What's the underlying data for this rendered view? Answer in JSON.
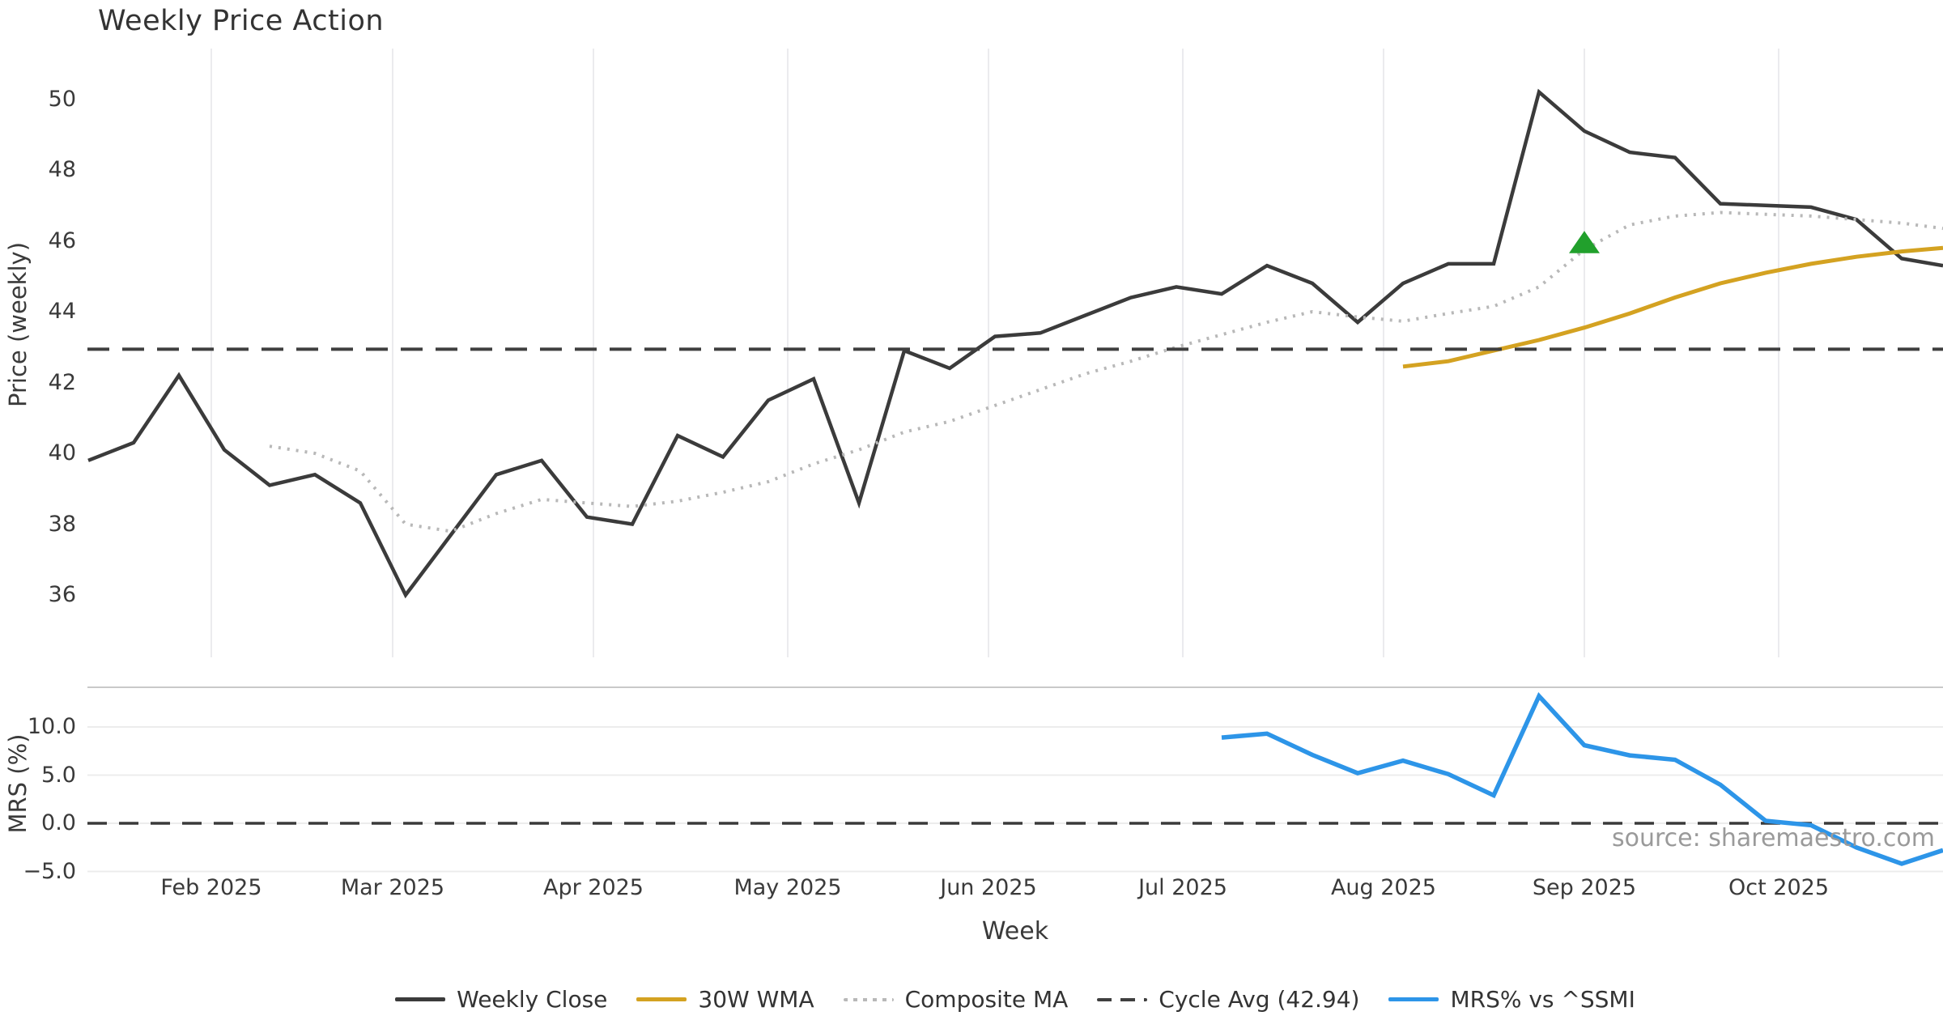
{
  "chart_data": {
    "type": "line",
    "title": "Weekly Price Action",
    "xlabel": "Week",
    "price_axis": {
      "label": "Price (weekly)",
      "ticks": [
        36,
        38,
        40,
        42,
        44,
        46,
        48,
        50
      ]
    },
    "mrs_axis": {
      "label": "MRS (%)",
      "ticks": [
        10.0,
        5.0,
        0.0,
        -5.0
      ]
    },
    "x_unit": "week-index",
    "n_weeks": 42,
    "month_ticks": [
      {
        "label": "Feb 2025",
        "week": 2.714
      },
      {
        "label": "Mar 2025",
        "week": 6.714
      },
      {
        "label": "Apr 2025",
        "week": 11.143
      },
      {
        "label": "May 2025",
        "week": 15.429
      },
      {
        "label": "Jun 2025",
        "week": 19.857
      },
      {
        "label": "Jul 2025",
        "week": 24.143
      },
      {
        "label": "Aug 2025",
        "week": 28.571
      },
      {
        "label": "Sep 2025",
        "week": 33.0
      },
      {
        "label": "Oct 2025",
        "week": 37.286
      }
    ],
    "series": [
      {
        "name": "Weekly Close",
        "panel": "price",
        "style": "solid",
        "color": "#3b3b3b",
        "width": 4.5,
        "start": 0,
        "values": [
          39.8,
          40.3,
          42.2,
          40.1,
          39.1,
          39.4,
          38.6,
          36.0,
          37.7,
          39.4,
          39.8,
          38.2,
          38.0,
          40.5,
          39.9,
          41.5,
          42.1,
          38.6,
          42.9,
          42.4,
          43.3,
          43.4,
          43.9,
          44.4,
          44.7,
          44.5,
          45.3,
          44.8,
          43.7,
          44.8,
          45.35,
          45.35,
          50.2,
          49.1,
          48.5,
          48.35,
          47.05,
          47.0,
          46.95,
          46.6,
          45.5,
          45.3
        ]
      },
      {
        "name": "30W WMA",
        "panel": "price",
        "style": "solid",
        "color": "#d4a221",
        "width": 5,
        "start": 29,
        "values": [
          42.45,
          42.6,
          42.9,
          43.2,
          43.55,
          43.95,
          44.4,
          44.8,
          45.1,
          45.35,
          45.55,
          45.7,
          45.8
        ]
      },
      {
        "name": "Composite MA",
        "panel": "price",
        "style": "dotted",
        "color": "#b8b8b8",
        "width": 4,
        "start": 4,
        "values": [
          40.2,
          40.0,
          39.5,
          38.0,
          37.8,
          38.3,
          38.7,
          38.6,
          38.5,
          38.65,
          38.9,
          39.2,
          39.7,
          40.1,
          40.6,
          40.9,
          41.35,
          41.8,
          42.25,
          42.6,
          43.0,
          43.35,
          43.7,
          44.0,
          43.85,
          43.73,
          43.95,
          44.15,
          44.7,
          45.75,
          46.45,
          46.7,
          46.8,
          46.75,
          46.7,
          46.6,
          46.5,
          46.35
        ]
      },
      {
        "name": "Cycle Avg (42.94)",
        "panel": "price",
        "style": "dashed",
        "color": "#3f3f3f",
        "width": 4,
        "const": 42.94
      },
      {
        "name": "MRS% vs ^SSMI",
        "panel": "mrs",
        "style": "solid",
        "color": "#2d95e8",
        "width": 5.5,
        "start": 25,
        "values": [
          8.9,
          9.3,
          7.1,
          5.2,
          6.5,
          5.1,
          2.9,
          13.2,
          8.1,
          7.05,
          6.6,
          4.0,
          0.25,
          -0.2,
          -2.5,
          -4.2,
          -2.8
        ]
      }
    ],
    "marker": {
      "shape": "triangle-up",
      "color": "#21a02c",
      "week": 33,
      "price": 45.95
    },
    "mrs_zero_line": {
      "value": 0.0,
      "style": "dashed",
      "color": "#3a3a3a"
    },
    "source": "source: sharemaestro.com",
    "grid": {
      "price_panel": "vertical-months",
      "mrs_panel": "horizontal",
      "color": "#ebebee"
    },
    "legend_position": "bottom-center"
  }
}
